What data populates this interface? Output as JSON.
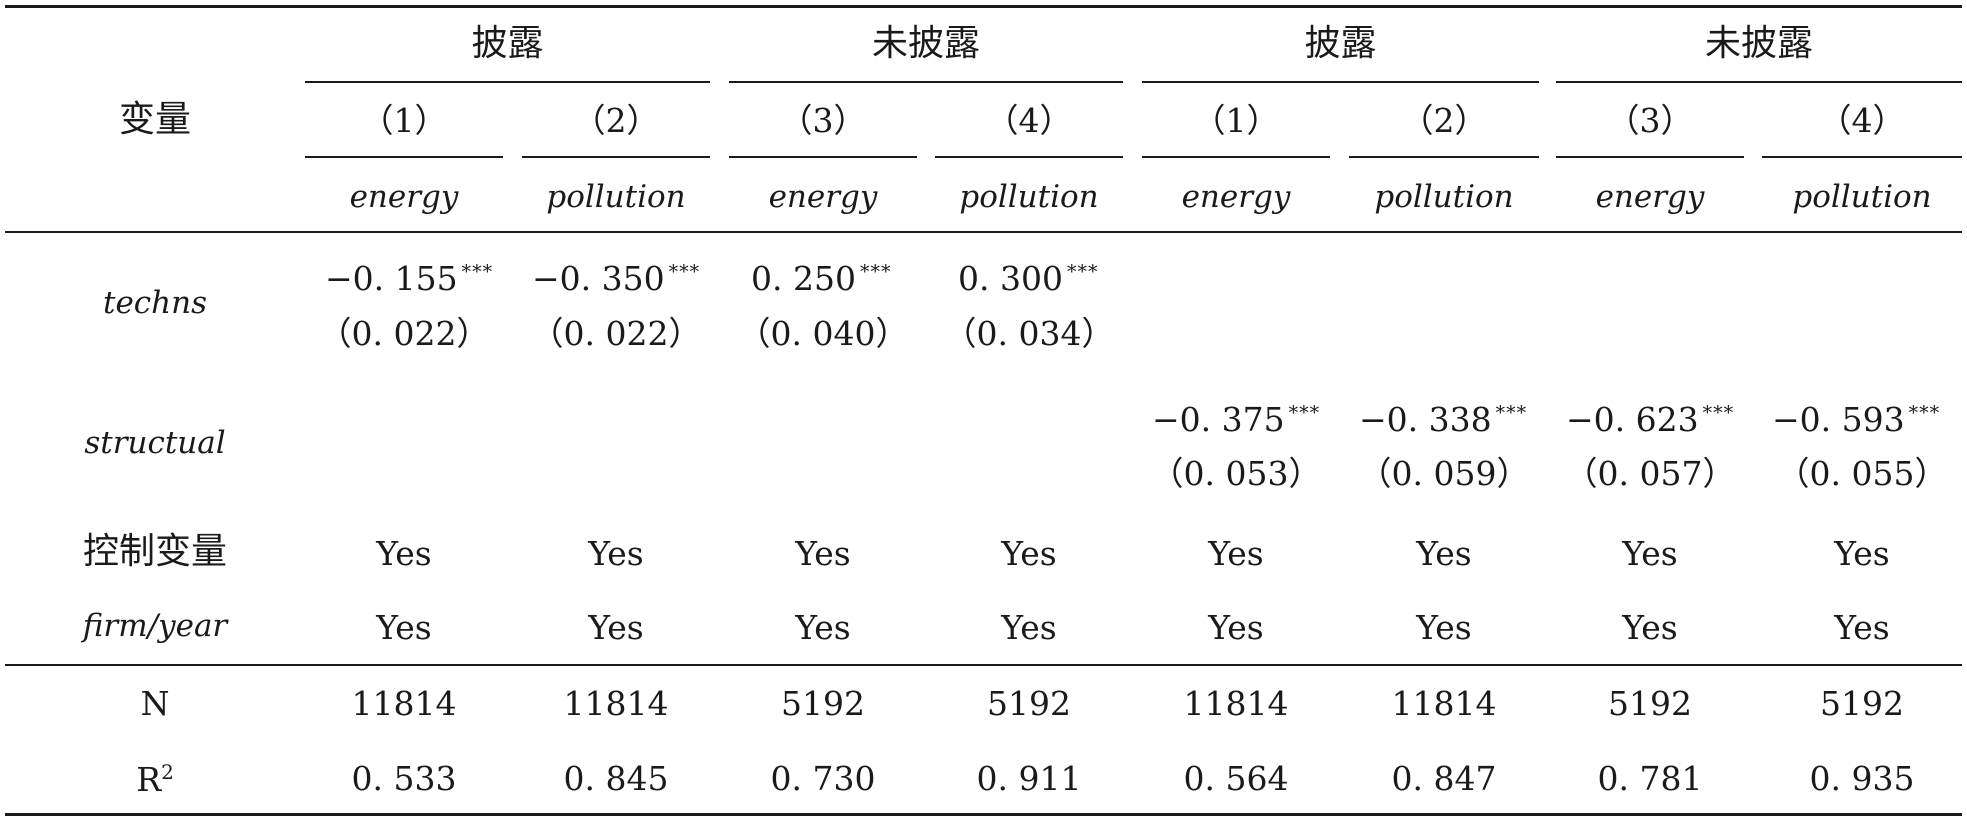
{
  "table": {
    "row_header": "变量",
    "groups": [
      "披露",
      "未披露",
      "披露",
      "未披露"
    ],
    "col_numbers": [
      "（1）",
      "（2）",
      "（3）",
      "（4）",
      "（1）",
      "（2）",
      "（3）",
      "（4）"
    ],
    "dep_vars": [
      "energy",
      "pollution",
      "energy",
      "pollution",
      "energy",
      "pollution",
      "energy",
      "pollution"
    ],
    "rows": {
      "techns": {
        "label": "techns",
        "coefs": [
          "−0. 155",
          "−0. 350",
          "0. 250",
          "0. 300"
        ],
        "stars": [
          "***",
          "***",
          "***",
          "***"
        ],
        "se": [
          "（0. 022）",
          "（0. 022）",
          "（0. 040）",
          "（0. 034）"
        ]
      },
      "structual": {
        "label": "structual",
        "coefs": [
          "−0. 375",
          "−0. 338",
          "−0. 623",
          "−0. 593"
        ],
        "stars": [
          "***",
          "***",
          "***",
          "***"
        ],
        "se": [
          "（0. 053）",
          "（0. 059）",
          "（0. 057）",
          "（0. 055）"
        ]
      },
      "controls": {
        "label": "控制变量",
        "values": [
          "Yes",
          "Yes",
          "Yes",
          "Yes",
          "Yes",
          "Yes",
          "Yes",
          "Yes"
        ]
      },
      "fe": {
        "label": "firm/year",
        "values": [
          "Yes",
          "Yes",
          "Yes",
          "Yes",
          "Yes",
          "Yes",
          "Yes",
          "Yes"
        ]
      },
      "n": {
        "label": "N",
        "values": [
          "11814",
          "11814",
          "5192",
          "5192",
          "11814",
          "11814",
          "5192",
          "5192"
        ]
      },
      "r2": {
        "label_base": "R",
        "label_sup": "2",
        "values": [
          "0. 533",
          "0. 845",
          "0. 730",
          "0. 911",
          "0. 564",
          "0. 847",
          "0. 781",
          "0. 935"
        ]
      }
    }
  }
}
